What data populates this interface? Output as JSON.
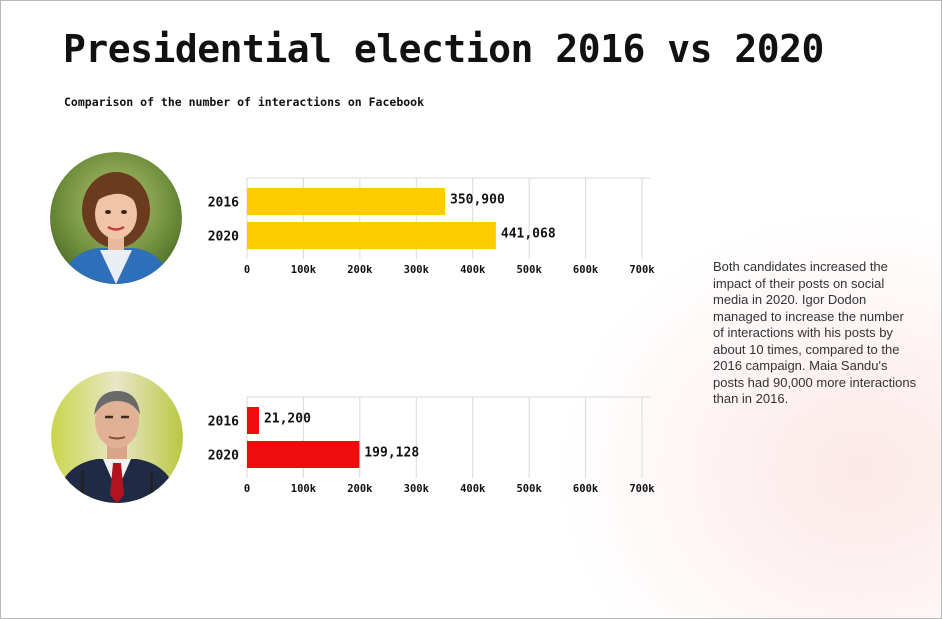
{
  "title": "Presidential election 2016 vs 2020",
  "subtitle": "Comparison of the number of interactions on Facebook",
  "note": "Both candidates increased the impact of their posts on social media in 2020. Igor Dodon managed to increase the number of interactions with his posts by about 10 times, compared to the 2016 campaign. Maia Sandu's posts had 90,000 more interactions than in 2016.",
  "chart_data": [
    {
      "type": "bar",
      "orientation": "horizontal",
      "categories": [
        "2016",
        "2020"
      ],
      "values": [
        350900,
        441068
      ],
      "value_labels": [
        "350,900",
        "441,068"
      ],
      "color": "#ffcc00",
      "xlim": [
        0,
        700000
      ],
      "xticks": [
        0,
        100000,
        200000,
        300000,
        400000,
        500000,
        600000,
        700000
      ],
      "xtick_labels": [
        "0",
        "100k",
        "200k",
        "300k",
        "400k",
        "500k",
        "600k",
        "700k"
      ],
      "grid": "vertical"
    },
    {
      "type": "bar",
      "orientation": "horizontal",
      "categories": [
        "2016",
        "2020"
      ],
      "values": [
        21200,
        199128
      ],
      "value_labels": [
        "21,200",
        "199,128"
      ],
      "color": "#ee0c0c",
      "xlim": [
        0,
        700000
      ],
      "xticks": [
        0,
        100000,
        200000,
        300000,
        400000,
        500000,
        600000,
        700000
      ],
      "xtick_labels": [
        "0",
        "100k",
        "200k",
        "300k",
        "400k",
        "500k",
        "600k",
        "700k"
      ],
      "grid": "vertical"
    }
  ]
}
